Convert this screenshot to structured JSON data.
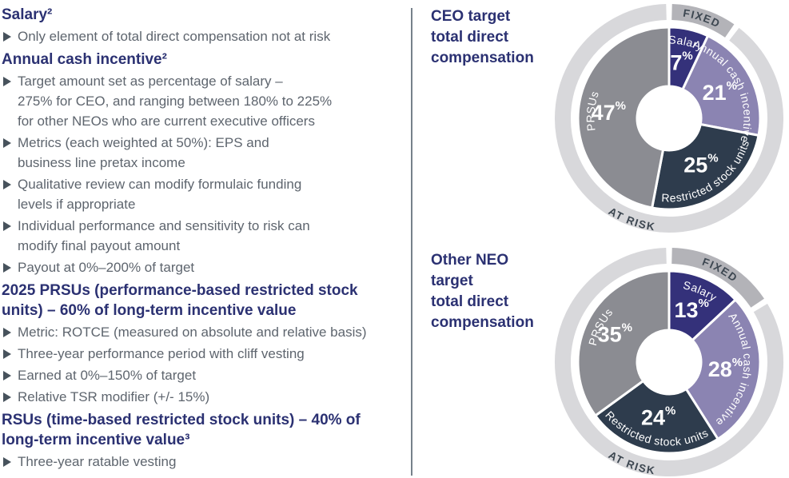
{
  "palette": {
    "heading_navy": "#2b3172",
    "body_gray": "#5e656e",
    "bullet_gray": "#47525c",
    "divider_gray": "#76818b",
    "slice_navy": "#34317a",
    "slice_purple": "#8b84b2",
    "slice_slate": "#2e3c4d",
    "slice_gray": "#8b8c92",
    "ring_light": "#d8d8db",
    "ring_fixed": "#b3b3b8",
    "ring_text": "#3d4751",
    "slice_text": "#ffffff"
  },
  "left_panel": {
    "sections": [
      {
        "type": "heading",
        "text": "Salary²"
      },
      {
        "type": "bullet",
        "lines": [
          "Only element of total direct compensation not at risk"
        ]
      },
      {
        "type": "heading",
        "text": "Annual cash incentive²"
      },
      {
        "type": "bullet",
        "lines": [
          "Target amount set as percentage of salary –",
          "275% for CEO, and ranging between 180% to 225%",
          "for other NEOs who are current executive officers"
        ]
      },
      {
        "type": "bullet",
        "lines": [
          "Metrics (each weighted at 50%): EPS and",
          "business line pretax income"
        ]
      },
      {
        "type": "bullet",
        "lines": [
          "Qualitative review can modify formulaic funding",
          "levels if appropriate"
        ]
      },
      {
        "type": "bullet",
        "lines": [
          "Individual performance and sensitivity to risk can",
          "modify final payout amount"
        ]
      },
      {
        "type": "bullet",
        "lines": [
          "Payout at 0%–200% of target"
        ]
      },
      {
        "type": "heading",
        "text": "2025 PRSUs (performance-based restricted stock\nunits) – 60% of long-term incentive value"
      },
      {
        "type": "bullet",
        "lines": [
          "Metric: ROTCE (measured on absolute and relative basis)"
        ]
      },
      {
        "type": "bullet",
        "lines": [
          "Three-year performance period with cliff vesting"
        ]
      },
      {
        "type": "bullet",
        "lines": [
          "Earned at 0%–150% of target"
        ]
      },
      {
        "type": "bullet",
        "lines": [
          "Relative TSR modifier (+/- 15%)"
        ]
      },
      {
        "type": "heading",
        "text": "RSUs (time-based restricted stock units) – 40% of\nlong-term incentive value³"
      },
      {
        "type": "bullet",
        "lines": [
          "Three-year ratable vesting"
        ]
      }
    ]
  },
  "chart_data": [
    {
      "type": "pie",
      "subtype": "donut-with-outer-ring",
      "title": "CEO target\ntotal direct\ncompensation",
      "categories": [
        "Salary",
        "Annual cash incentive",
        "Restricted stock units",
        "PRSUs"
      ],
      "values": [
        7,
        21,
        25,
        47
      ],
      "units": "%",
      "start_angle_deg": 0,
      "direction": "clockwise",
      "label_orientation": [
        "cw",
        "cw",
        "ccw",
        "cw"
      ],
      "outer_ring": {
        "fixed_label": "FIXED",
        "at_risk_label": "AT RISK",
        "fixed_covers": "Salary"
      }
    },
    {
      "type": "pie",
      "subtype": "donut-with-outer-ring",
      "title": "Other NEO target\ntotal direct\ncompensation",
      "categories": [
        "Salary",
        "Annual cash incentive",
        "Restricted stock units",
        "PRSUs"
      ],
      "values": [
        13,
        28,
        24,
        35
      ],
      "units": "%",
      "start_angle_deg": 0,
      "direction": "clockwise",
      "label_orientation": [
        "cw",
        "cw",
        "ccw",
        "cw"
      ],
      "outer_ring": {
        "fixed_label": "FIXED",
        "at_risk_label": "AT RISK",
        "fixed_covers": "Salary"
      }
    }
  ]
}
